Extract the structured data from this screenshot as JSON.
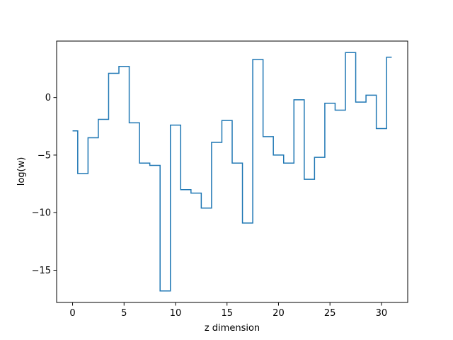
{
  "chart_data": {
    "type": "line",
    "drawstyle": "steps-mid",
    "title": "",
    "xlabel": "z dimension",
    "ylabel": "log(w)",
    "xlim": [
      -1.55,
      32.55
    ],
    "ylim": [
      -17.8,
      4.9
    ],
    "xticks": [
      0,
      5,
      10,
      15,
      20,
      25,
      30
    ],
    "xtick_labels": [
      "0",
      "5",
      "10",
      "15",
      "20",
      "25",
      "30"
    ],
    "yticks": [
      -15,
      -10,
      -5,
      0
    ],
    "ytick_labels": [
      "−15",
      "−10",
      "−5",
      "0"
    ],
    "grid": false,
    "legend": false,
    "color": "#1f77b4",
    "series": [
      {
        "x": [
          0,
          1,
          2,
          3,
          4,
          5,
          6,
          7,
          8,
          9,
          10,
          11,
          12,
          13,
          14,
          15,
          16,
          17,
          18,
          19,
          20,
          21,
          22,
          23,
          24,
          25,
          26,
          27,
          28,
          29,
          30,
          31
        ],
        "values": [
          -2.9,
          -6.6,
          -3.5,
          -1.9,
          2.1,
          2.7,
          -2.2,
          -5.7,
          -5.9,
          -16.8,
          -2.4,
          -8.0,
          -8.3,
          -9.6,
          -3.9,
          -2.0,
          -5.7,
          -10.9,
          3.3,
          -3.4,
          -5.0,
          -5.7,
          -0.2,
          -7.1,
          -5.2,
          -0.5,
          -1.1,
          3.9,
          -0.4,
          0.2,
          -2.7,
          3.5
        ]
      }
    ]
  }
}
